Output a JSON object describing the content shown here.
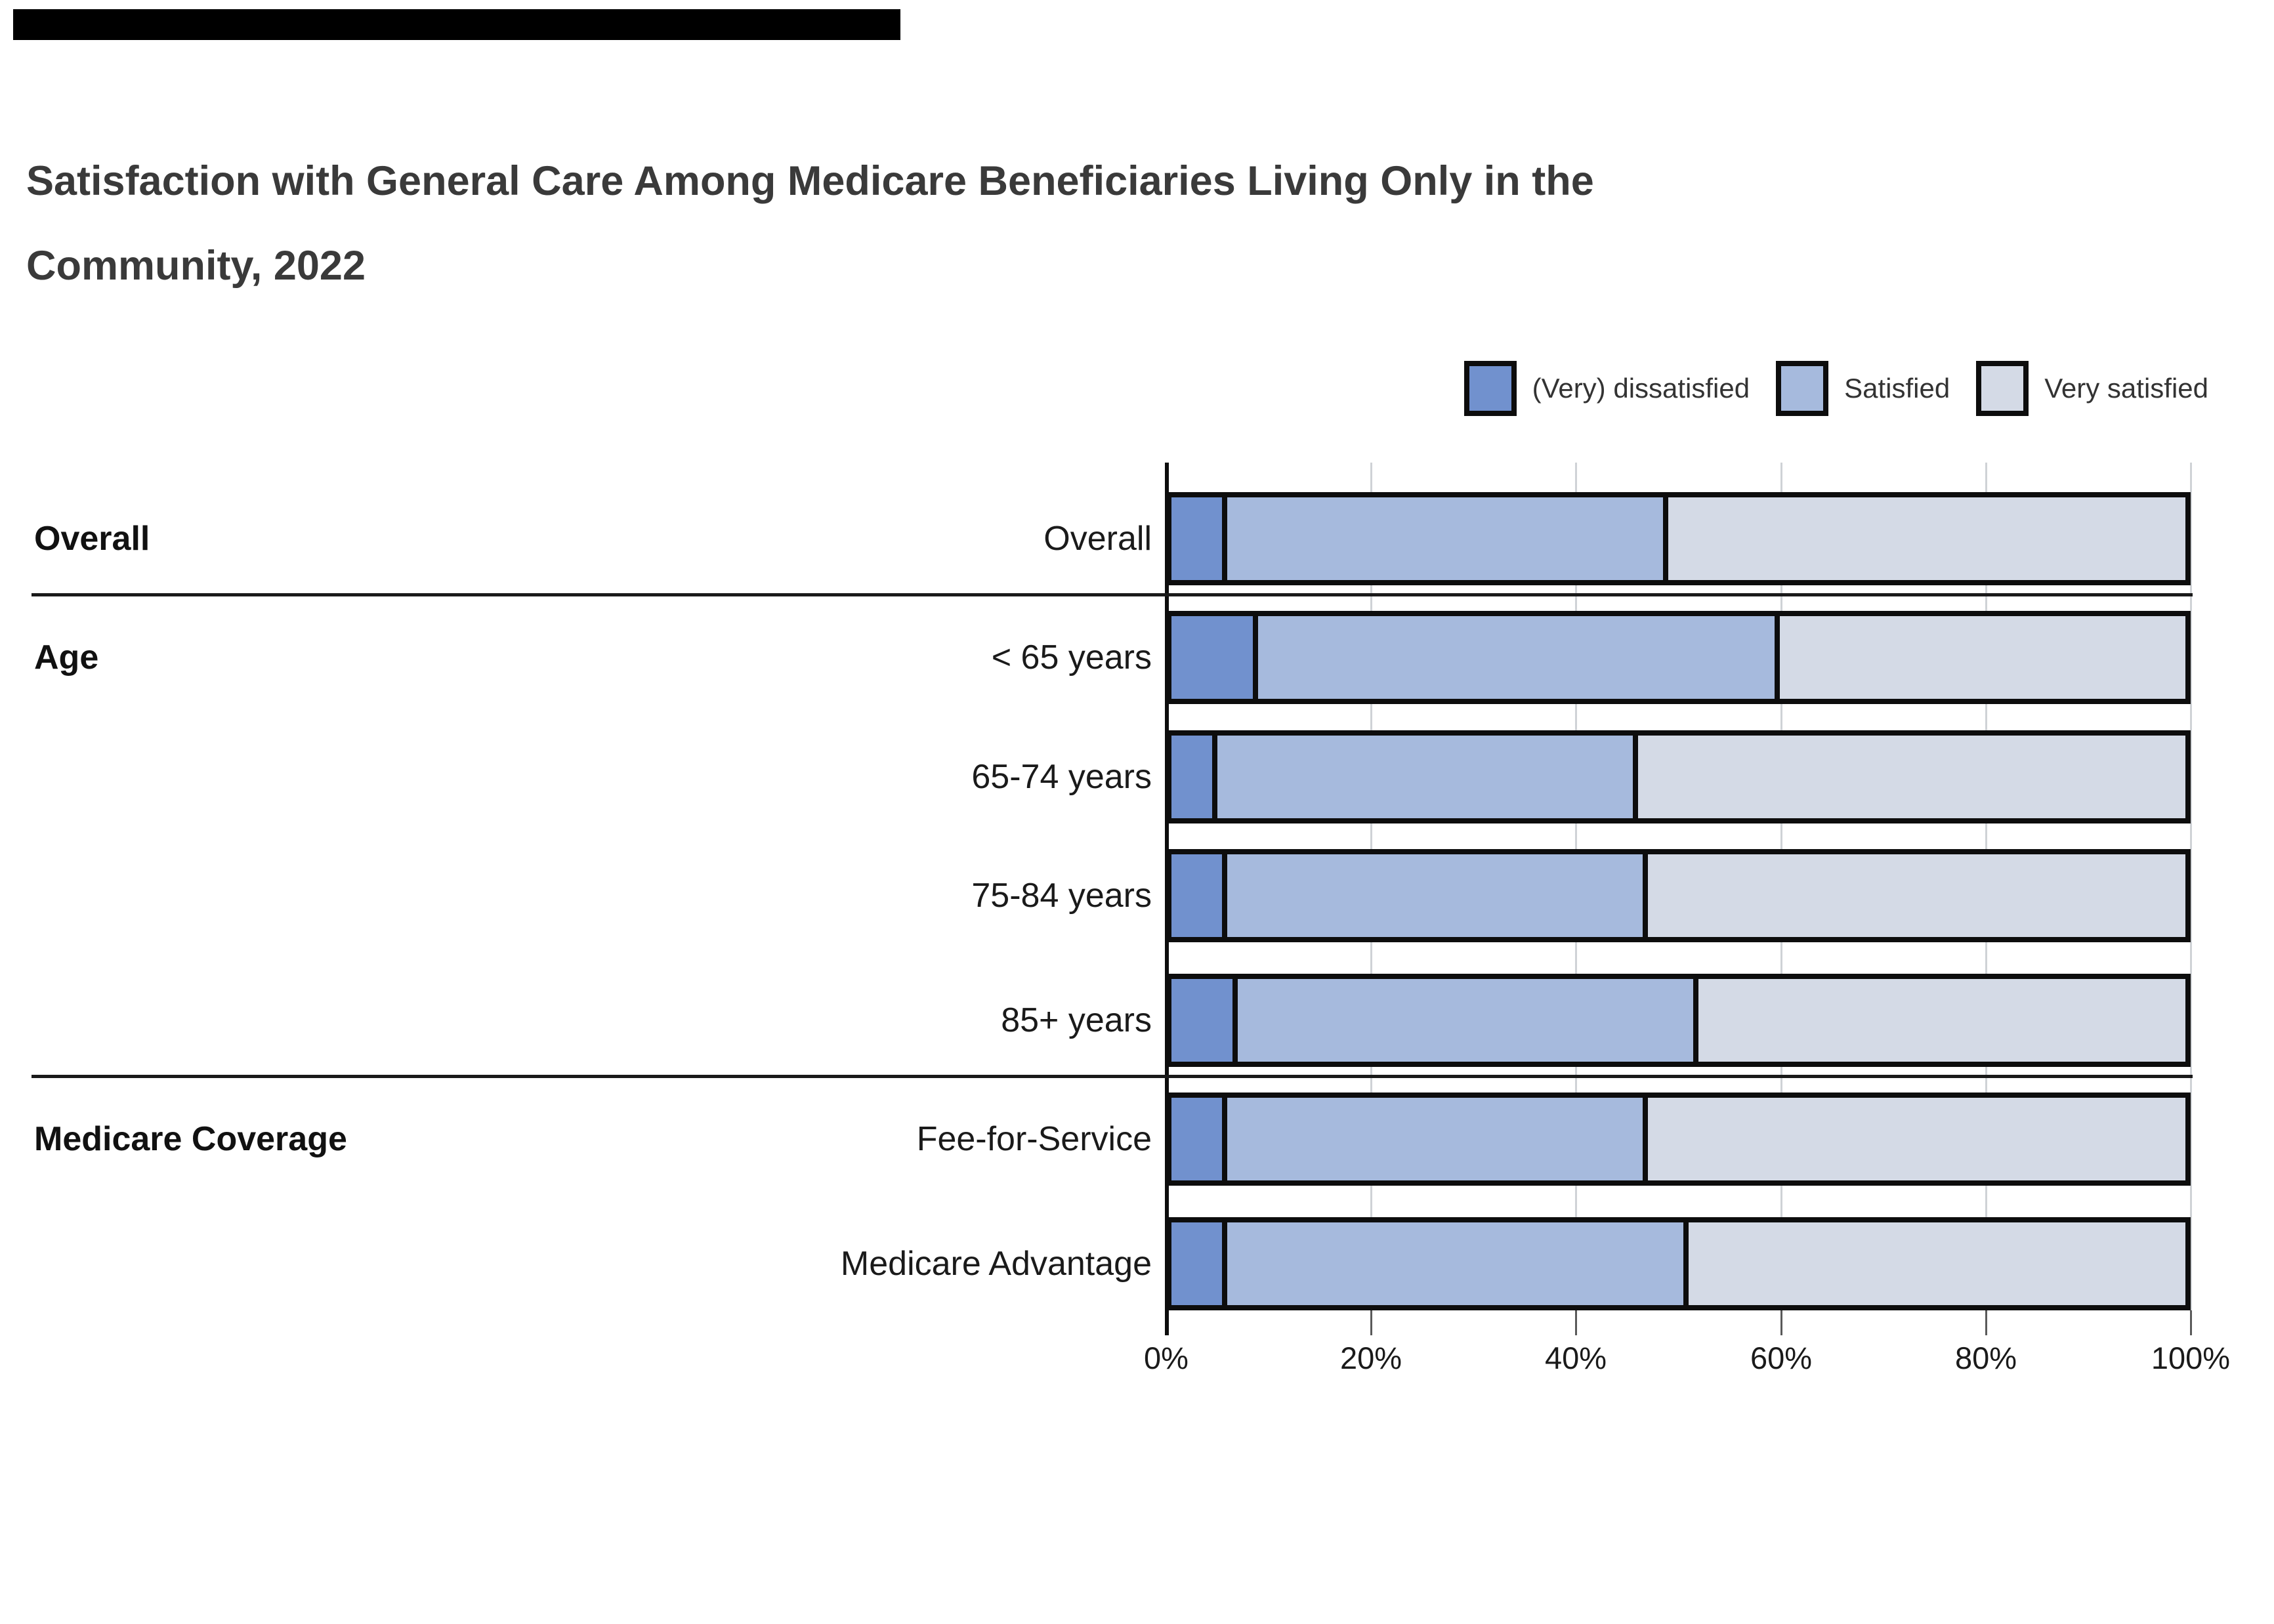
{
  "title": "Satisfaction with General Care Among Medicare Beneficiaries Living Only in the\nCommunity, 2022",
  "colors": {
    "dissatisfied": "#7191CE",
    "satisfied": "#A6BADD",
    "very_satisfied": "#D4DAE6",
    "bar_border": "#0d0d0d",
    "gridline": "#cfd2d6",
    "title_text": "#3a3a3a",
    "redaction_bar": "#000000"
  },
  "legend": {
    "items": [
      {
        "label": "(Very) dissatisfied",
        "color": "#7191CE"
      },
      {
        "label": "Satisfied",
        "color": "#A6BADD"
      },
      {
        "label": "Very satisfied",
        "color": "#D4DAE6"
      }
    ]
  },
  "chart_data": {
    "type": "bar",
    "orientation": "horizontal",
    "stacked": true,
    "title": "Satisfaction with General Care Among Medicare Beneficiaries Living Only in the Community, 2022",
    "categories": [
      "Overall",
      "< 65 years",
      "65-74 years",
      "75-84 years",
      "85+ years",
      "Fee-for-Service",
      "Medicare Advantage"
    ],
    "groups": [
      {
        "label": "Overall",
        "first_category_index": 0
      },
      {
        "label": "Age",
        "first_category_index": 1
      },
      {
        "label": "Medicare Coverage",
        "first_category_index": 5
      }
    ],
    "series": [
      {
        "name": "(Very) dissatisfied",
        "values": [
          5,
          8,
          4,
          5,
          6,
          5,
          5
        ]
      },
      {
        "name": "Satisfied",
        "values": [
          44,
          52,
          42,
          42,
          46,
          42,
          46
        ]
      },
      {
        "name": "Very satisfied",
        "values": [
          51,
          40,
          54,
          53,
          48,
          53,
          49
        ]
      }
    ],
    "x_ticks": [
      "0%",
      "20%",
      "40%",
      "60%",
      "80%",
      "100%"
    ],
    "xlim": [
      0,
      100
    ],
    "grid": true,
    "legend_position": "top-right"
  }
}
